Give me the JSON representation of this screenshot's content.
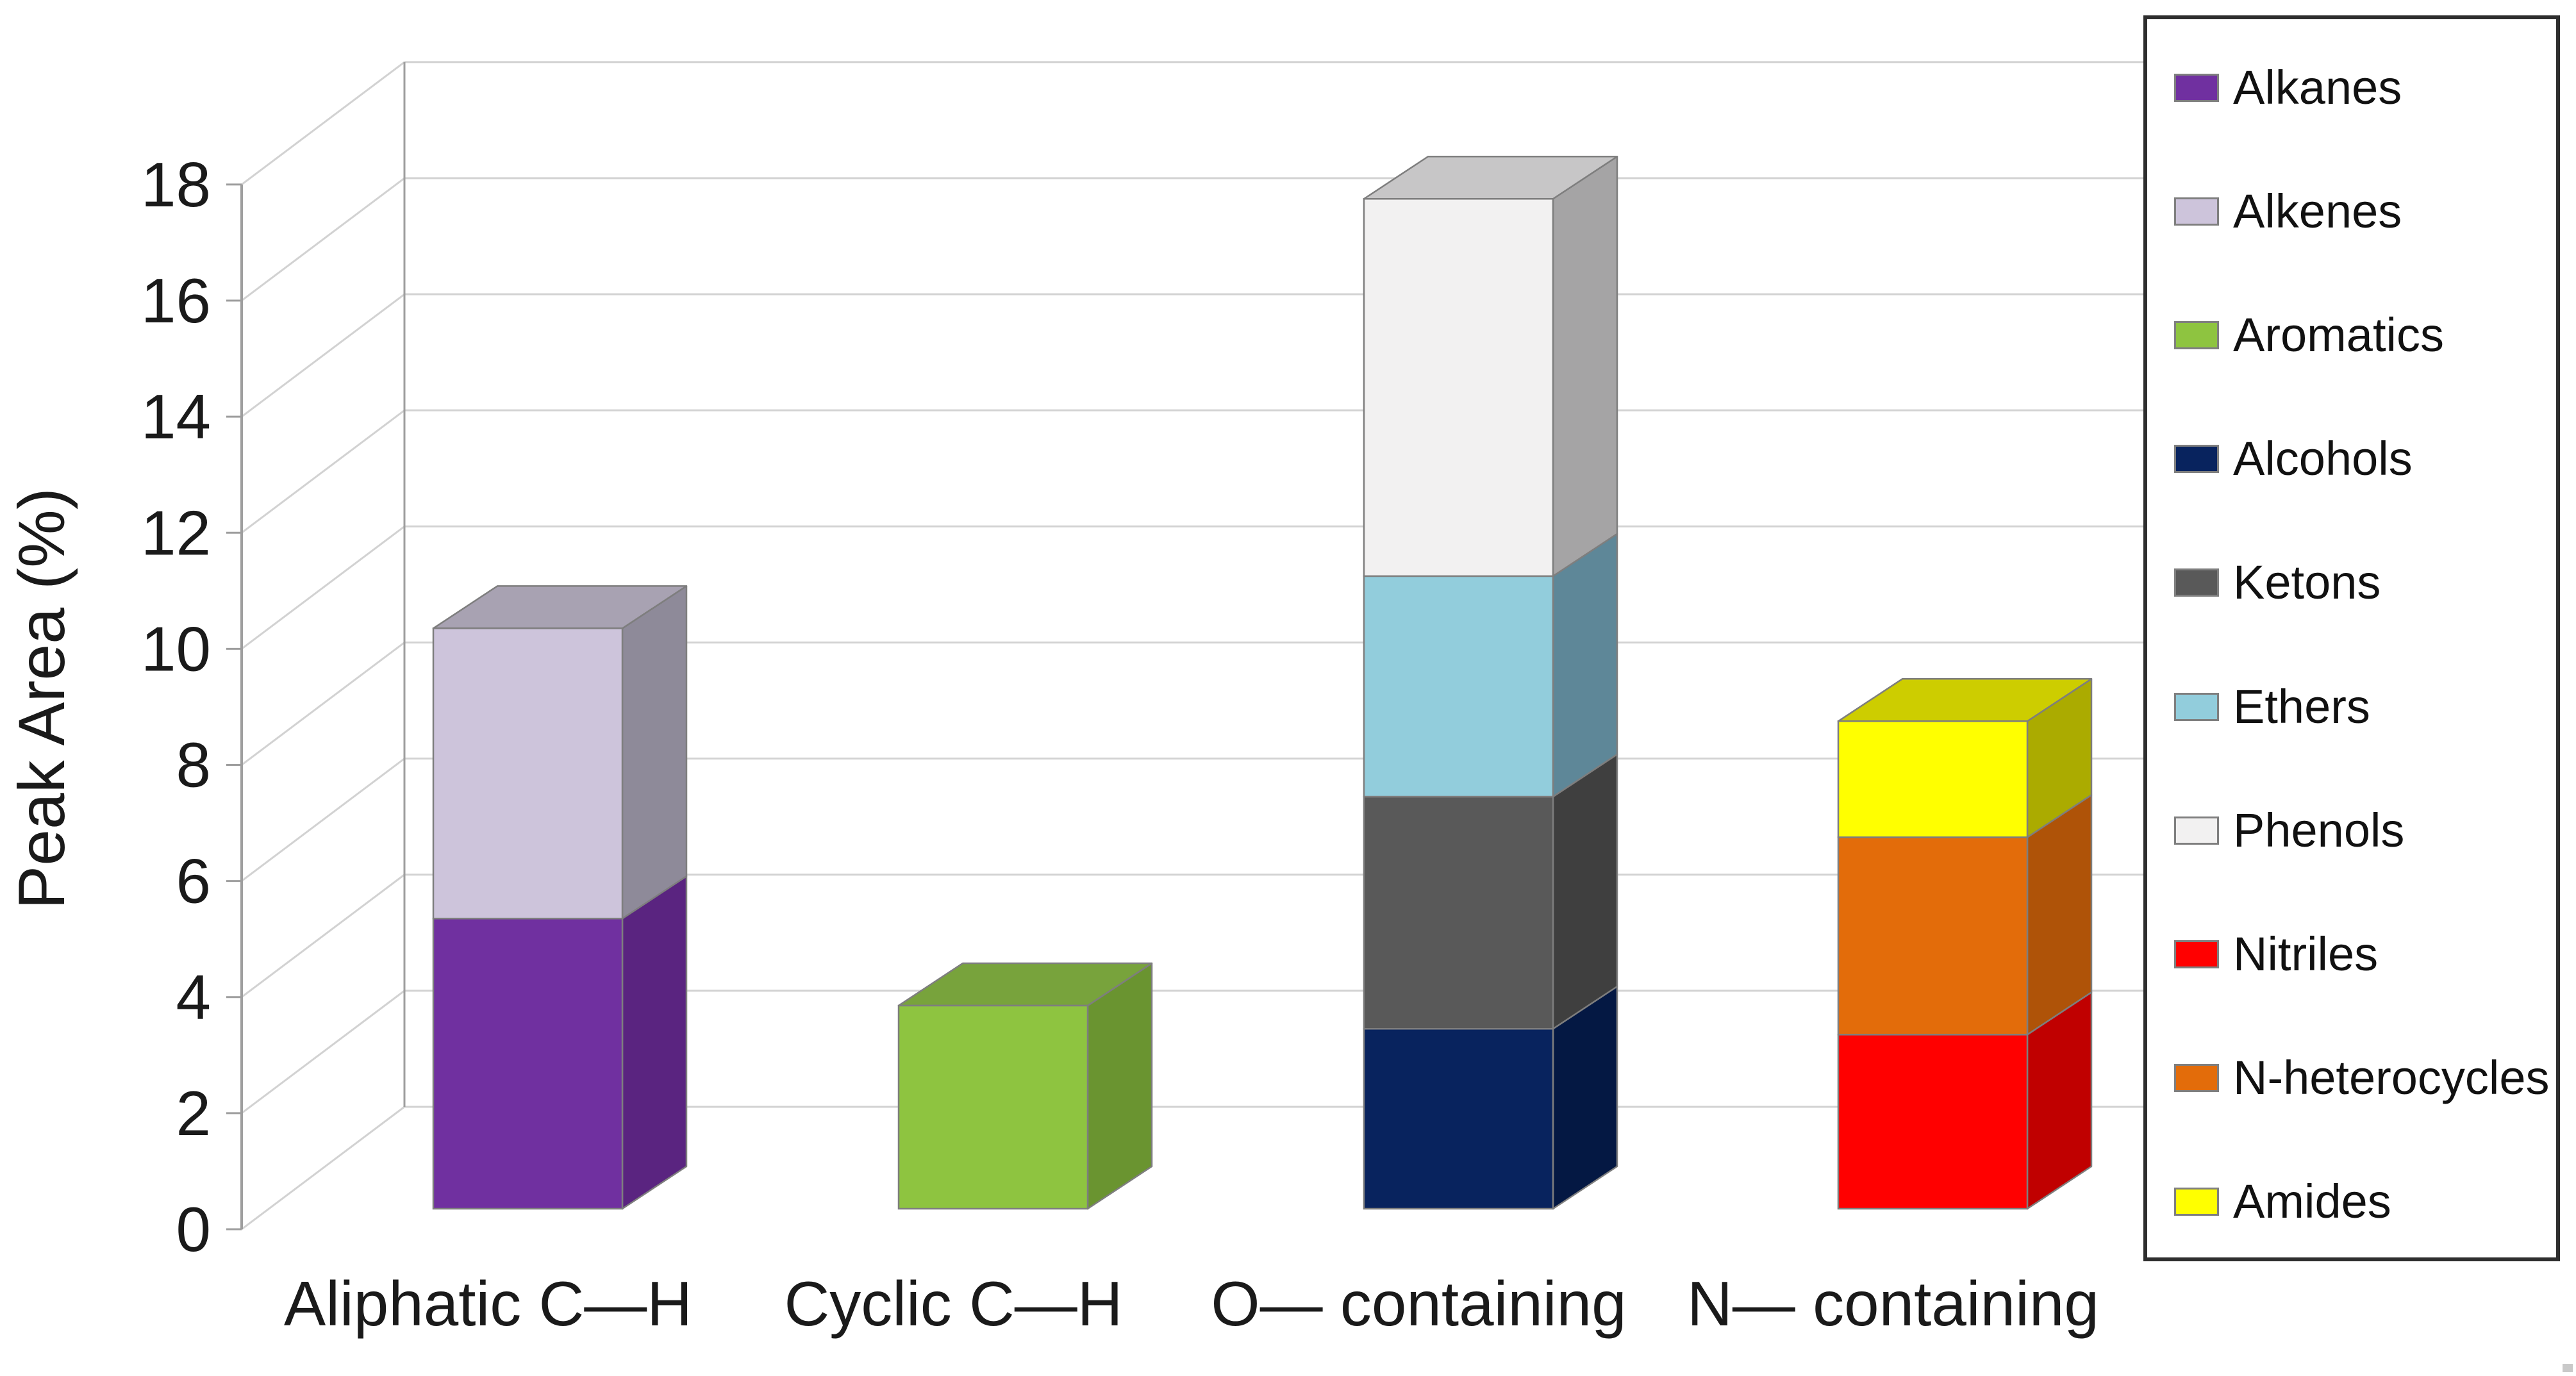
{
  "figure": {
    "background": "#FFFFFF",
    "ink_color": "#1A1A1A",
    "gridline_color": "#D2D2D2",
    "axis_color": "#9E9E9E",
    "bar_edge_color": "#7E7E7E",
    "legend_border_color": "#2E2E2E"
  },
  "chart_data": {
    "type": "bar",
    "variant": "3d-stacked-column",
    "title": "",
    "xlabel": "",
    "ylabel": "Peak Area (%)",
    "ylim": [
      0,
      18
    ],
    "ytick_step": 2,
    "ytick_labels": [
      "0",
      "2",
      "4",
      "6",
      "8",
      "10",
      "12",
      "14",
      "16",
      "18"
    ],
    "grid": true,
    "legend_position": "right",
    "categories": [
      "Aliphatic C—H",
      "Cyclic C—H",
      "O— containing",
      "N— containing"
    ],
    "category_totals": [
      10.0,
      3.5,
      17.4,
      8.4
    ],
    "series": [
      {
        "name": "Alkanes",
        "color": "#7030A0",
        "side": "#5A2480",
        "top": "#A8A2B2",
        "values": [
          5.0,
          0,
          0,
          0
        ]
      },
      {
        "name": "Alkenes",
        "color": "#CDC4DB",
        "side": "#8E8A99",
        "top": "#A8A2B2",
        "values": [
          5.0,
          0,
          0,
          0
        ]
      },
      {
        "name": "Aromatics",
        "color": "#8EC440",
        "side": "#6A9430",
        "top": "#78A33C",
        "values": [
          0,
          3.5,
          0,
          0
        ]
      },
      {
        "name": "Alcohols",
        "color": "#08235E",
        "side": "#041843",
        "top": "#2A4470",
        "values": [
          0,
          0,
          3.1,
          0
        ]
      },
      {
        "name": "Ketons",
        "color": "#595959",
        "side": "#3F3F3F",
        "top": "#6E6E6E",
        "values": [
          0,
          0,
          4.0,
          0
        ]
      },
      {
        "name": "Ethers",
        "color": "#92CDDC",
        "side": "#5E8798",
        "top": "#A5D5E2",
        "values": [
          0,
          0,
          3.8,
          0
        ]
      },
      {
        "name": "Phenols",
        "color": "#F2F1F1",
        "side": "#A5A4A5",
        "top": "#C7C6C7",
        "values": [
          0,
          0,
          6.5,
          0
        ]
      },
      {
        "name": "Nitriles",
        "color": "#FF0000",
        "side": "#C00000",
        "top": "#E03030",
        "values": [
          0,
          0,
          0,
          3.0
        ]
      },
      {
        "name": "N-heterocycles",
        "color": "#E36C0A",
        "side": "#AF5308",
        "top": "#D06508",
        "values": [
          0,
          0,
          0,
          3.4
        ]
      },
      {
        "name": "Amides",
        "color": "#FFFF00",
        "side": "#ABAB00",
        "top": "#CDCD00",
        "values": [
          0,
          0,
          0,
          2.0
        ]
      }
    ]
  }
}
